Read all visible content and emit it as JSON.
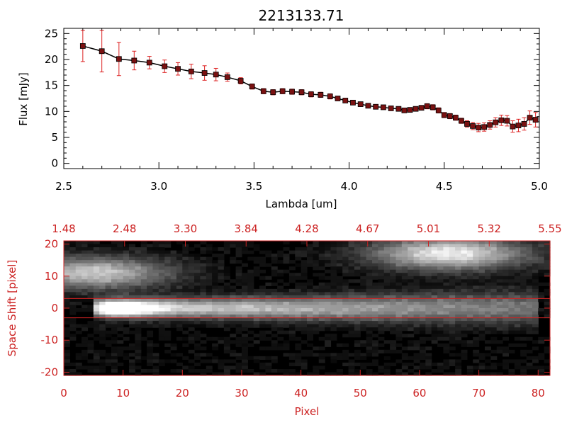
{
  "colors": {
    "axis_top": "#000000",
    "axis_bottom": "#cc2222",
    "marker": "#7a1111",
    "errorbar": "#dd2222",
    "line": "#000000",
    "background": "#ffffff"
  },
  "chart_data": [
    {
      "type": "line",
      "title": "2213133.71",
      "xlabel": "Lambda [um]",
      "ylabel": "Flux [mJy]",
      "xlim": [
        2.5,
        5.0
      ],
      "ylim": [
        -1,
        26
      ],
      "xticks": [
        "2.5",
        "3.0",
        "3.5",
        "4.0",
        "4.5",
        "5.0"
      ],
      "yticks": [
        "0",
        "5",
        "10",
        "15",
        "20",
        "25"
      ],
      "grid": false,
      "series": [
        {
          "x": [
            2.6,
            2.7,
            2.79,
            2.87,
            2.95,
            3.03,
            3.1,
            3.17,
            3.24,
            3.3,
            3.36,
            3.43,
            3.49,
            3.55,
            3.6,
            3.65,
            3.7,
            3.75,
            3.8,
            3.85,
            3.9,
            3.94,
            3.98,
            4.02,
            4.06,
            4.1,
            4.14,
            4.18,
            4.22,
            4.26,
            4.29,
            4.32,
            4.35,
            4.38,
            4.41,
            4.44,
            4.47,
            4.5,
            4.53,
            4.56,
            4.59,
            4.62,
            4.65,
            4.68,
            4.71,
            4.74,
            4.77,
            4.8,
            4.83,
            4.86,
            4.89,
            4.92,
            4.95,
            4.98
          ],
          "y": [
            22.6,
            21.6,
            20.1,
            19.8,
            19.4,
            18.7,
            18.2,
            17.7,
            17.4,
            17.1,
            16.6,
            15.9,
            14.8,
            13.9,
            13.7,
            13.9,
            13.8,
            13.7,
            13.3,
            13.2,
            12.9,
            12.5,
            12.1,
            11.7,
            11.4,
            11.1,
            10.9,
            10.8,
            10.6,
            10.5,
            10.2,
            10.3,
            10.5,
            10.7,
            11.0,
            10.8,
            10.2,
            9.3,
            9.1,
            8.8,
            8.2,
            7.6,
            7.2,
            6.9,
            7.0,
            7.4,
            7.9,
            8.3,
            8.2,
            7.1,
            7.3,
            7.6,
            8.8,
            8.4
          ],
          "yerr": [
            3.0,
            4.0,
            3.2,
            1.8,
            1.2,
            1.2,
            1.2,
            1.4,
            1.4,
            1.2,
            0.8,
            0.6,
            0.5,
            0.5,
            0.5,
            0.5,
            0.5,
            0.5,
            0.5,
            0.5,
            0.5,
            0.4,
            0.4,
            0.4,
            0.4,
            0.4,
            0.4,
            0.4,
            0.4,
            0.4,
            0.4,
            0.4,
            0.4,
            0.4,
            0.5,
            0.5,
            0.5,
            0.5,
            0.5,
            0.5,
            0.5,
            0.6,
            0.7,
            0.8,
            0.8,
            0.8,
            0.9,
            1.0,
            1.0,
            1.1,
            1.2,
            1.2,
            1.3,
            1.4
          ]
        }
      ]
    },
    {
      "type": "heatmap",
      "xlabel": "Pixel",
      "ylabel": "Space Shift [pixel]",
      "xlim": [
        0,
        82
      ],
      "ylim": [
        -21,
        21
      ],
      "xticks": [
        "0",
        "10",
        "20",
        "30",
        "40",
        "50",
        "60",
        "70",
        "80"
      ],
      "yticks": [
        "-20",
        "-10",
        "0",
        "10",
        "20"
      ],
      "top_ticks": [
        "1.48",
        "2.48",
        "3.30",
        "3.84",
        "4.28",
        "4.67",
        "5.01",
        "5.32",
        "5.55"
      ],
      "extraction_lines": [
        3,
        -3
      ],
      "features": [
        {
          "kind": "trace",
          "x0": 7,
          "x1": 78,
          "y": 0,
          "peak": 1.0
        },
        {
          "kind": "blob",
          "x": 5,
          "y": 11,
          "peak": 0.75
        },
        {
          "kind": "blob",
          "x": 65,
          "y": 17,
          "peak": 0.9
        }
      ],
      "colormap": "grayscale"
    }
  ]
}
